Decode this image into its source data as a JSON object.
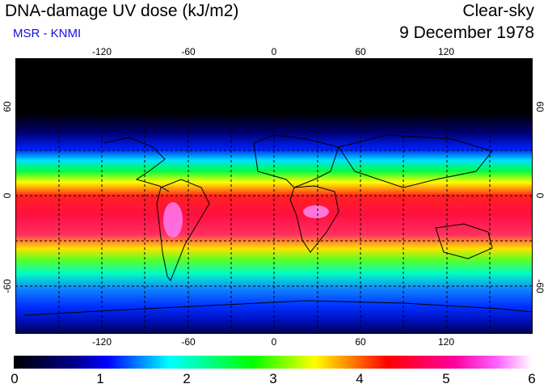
{
  "header": {
    "title": "DNA-damage UV dose (kJ/m2)",
    "source": "MSR - KNMI",
    "condition": "Clear-sky",
    "date": "9 December 1978"
  },
  "map": {
    "lon_ticks": [
      "-120",
      "-60",
      "0",
      "60",
      "120"
    ],
    "lat_ticks": [
      "60",
      "0",
      "-60"
    ]
  },
  "colorbar": {
    "labels": [
      "0",
      "1",
      "2",
      "3",
      "4",
      "5",
      "6"
    ],
    "colors": [
      "#000000",
      "#0000b0",
      "#0000ff",
      "#00ffff",
      "#00ff00",
      "#ffff00",
      "#ff0000",
      "#ff00a0",
      "#ff60ff",
      "#ffffff"
    ]
  }
}
